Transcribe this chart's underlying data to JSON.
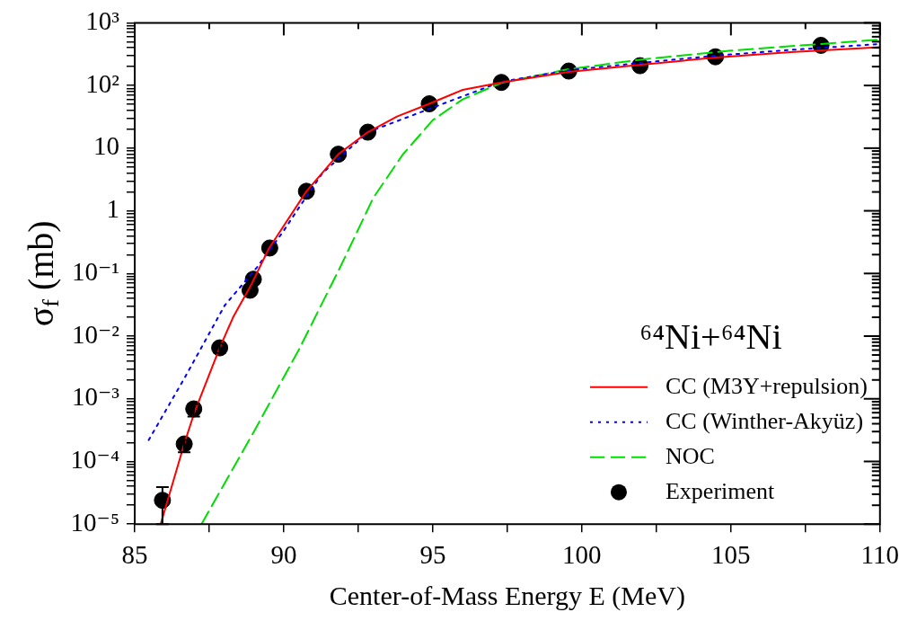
{
  "chart_data": {
    "type": "line",
    "xlabel": "Center-of-Mass Energy E (MeV)",
    "ylabel": "σ$_{f}$ (mb)",
    "legend_title": "⁶⁴Ni+⁶⁴Ni",
    "legend": "bottom right",
    "log": "y",
    "grid": false,
    "xlim": [
      85,
      110
    ],
    "ylim": [
      1e-05,
      1000
    ],
    "xticks": [
      85,
      {
        "value": 87.5,
        "label": null
      },
      90,
      {
        "value": 92.5,
        "label": null
      },
      95,
      {
        "value": 97.5,
        "label": null
      },
      100,
      {
        "value": 102.5,
        "label": null
      },
      105,
      {
        "value": 107.5,
        "label": null
      },
      110
    ],
    "yticks": [
      {
        "value": 1e-05,
        "label": "10⁻⁵"
      },
      {
        "value": 2e-05,
        "label": null
      },
      {
        "value": 3e-05,
        "label": null
      },
      {
        "value": 4e-05,
        "label": null
      },
      {
        "value": 5e-05,
        "label": null
      },
      {
        "value": 6e-05,
        "label": null
      },
      {
        "value": 7e-05,
        "label": null
      },
      {
        "value": 8e-05,
        "label": null
      },
      {
        "value": 9e-05,
        "label": null
      },
      {
        "value": 0.0001,
        "label": "10⁻⁴"
      },
      {
        "value": 0.0002,
        "label": null
      },
      {
        "value": 0.0003,
        "label": null
      },
      {
        "value": 0.0004,
        "label": null
      },
      {
        "value": 0.0005,
        "label": null
      },
      {
        "value": 0.0006,
        "label": null
      },
      {
        "value": 0.0007,
        "label": null
      },
      {
        "value": 0.0008,
        "label": null
      },
      {
        "value": 0.0009,
        "label": null
      },
      {
        "value": 0.001,
        "label": "10⁻³"
      },
      {
        "value": 0.002,
        "label": null
      },
      {
        "value": 0.003,
        "label": null
      },
      {
        "value": 0.004,
        "label": null
      },
      {
        "value": 0.005,
        "label": null
      },
      {
        "value": 0.006,
        "label": null
      },
      {
        "value": 0.007,
        "label": null
      },
      {
        "value": 0.008,
        "label": null
      },
      {
        "value": 0.009,
        "label": null
      },
      {
        "value": 0.01,
        "label": "10⁻²"
      },
      {
        "value": 0.02,
        "label": null
      },
      {
        "value": 0.03,
        "label": null
      },
      {
        "value": 0.04,
        "label": null
      },
      {
        "value": 0.05,
        "label": null
      },
      {
        "value": 0.06,
        "label": null
      },
      {
        "value": 0.07,
        "label": null
      },
      {
        "value": 0.08,
        "label": null
      },
      {
        "value": 0.09,
        "label": null
      },
      {
        "value": 0.1,
        "label": "10⁻¹"
      },
      {
        "value": 0.2,
        "label": null
      },
      {
        "value": 0.3,
        "label": null
      },
      {
        "value": 0.4,
        "label": null
      },
      {
        "value": 0.5,
        "label": null
      },
      {
        "value": 0.6,
        "label": null
      },
      {
        "value": 0.7,
        "label": null
      },
      {
        "value": 0.8,
        "label": null
      },
      {
        "value": 0.9,
        "label": null
      },
      1,
      {
        "value": 2,
        "label": null
      },
      {
        "value": 3,
        "label": null
      },
      {
        "value": 4,
        "label": null
      },
      {
        "value": 5,
        "label": null
      },
      {
        "value": 6,
        "label": null
      },
      {
        "value": 7,
        "label": null
      },
      {
        "value": 8,
        "label": null
      },
      {
        "value": 9,
        "label": null
      },
      10,
      {
        "value": 20,
        "label": null
      },
      {
        "value": 30,
        "label": null
      },
      {
        "value": 40,
        "label": null
      },
      {
        "value": 50,
        "label": null
      },
      {
        "value": 60,
        "label": null
      },
      {
        "value": 70,
        "label": null
      },
      {
        "value": 80,
        "label": null
      },
      {
        "value": 90,
        "label": null
      },
      {
        "value": 100,
        "label": "10²"
      },
      {
        "value": 200,
        "label": null
      },
      {
        "value": 300,
        "label": null
      },
      {
        "value": 400,
        "label": null
      },
      {
        "value": 500,
        "label": null
      },
      {
        "value": 600,
        "label": null
      },
      {
        "value": 700,
        "label": null
      },
      {
        "value": 800,
        "label": null
      },
      {
        "value": 900,
        "label": null
      },
      {
        "value": 1000,
        "label": "10³"
      }
    ],
    "series": [
      {
        "name": "CC (M3Y+repulsion)",
        "color": "#ff0000",
        "line_style": "solid",
        "marker": "none",
        "x": [
          85.87,
          86.66,
          87.0,
          87.85,
          88.3,
          88.9,
          89.5,
          90.76,
          91.83,
          92.82,
          93.8,
          94.88,
          96.0,
          97.3,
          99.56,
          102.0,
          104.5,
          107.0,
          110.0
        ],
        "values": [
          1e-05,
          0.00019,
          0.0006,
          0.0065,
          0.02,
          0.065,
          0.25,
          2.05,
          8,
          18,
          32,
          51,
          85,
          112,
          165,
          215,
          280,
          340,
          410
        ]
      },
      {
        "name": "CC (Winther-Akyüz)",
        "color": "#0000ff",
        "line_style": "dotted",
        "marker": "none",
        "x": [
          85.47,
          85.87,
          86.66,
          87.24,
          88.02,
          89.1,
          89.97,
          90.55,
          91.3,
          92.82,
          97.3,
          99.56,
          102.0,
          104.5,
          107.0,
          110.0
        ],
        "values": [
          0.00022,
          0.00047,
          0.0021,
          0.0066,
          0.031,
          0.125,
          0.46,
          1.2,
          4.0,
          18,
          115,
          175,
          230,
          300,
          370,
          460
        ]
      },
      {
        "name": "NOC",
        "color": "#00dd00",
        "line_style": "dashed",
        "marker": "none",
        "x": [
          87.24,
          89.0,
          90.5,
          91.89,
          93.0,
          94.0,
          95.0,
          96.0,
          97.3,
          99.5,
          102.0,
          105.0,
          110.0
        ],
        "values": [
          1e-05,
          0.0003,
          0.006,
          0.125,
          1.6,
          8,
          28,
          60,
          110,
          180,
          260,
          360,
          540
        ]
      },
      {
        "name": "Experiment",
        "type": "scatter",
        "color": "#000000",
        "marker": "circle",
        "x": [
          85.93,
          86.66,
          86.98,
          87.85,
          88.87,
          88.98,
          89.53,
          90.76,
          91.83,
          92.82,
          94.88,
          97.3,
          99.56,
          101.95,
          104.48,
          108.02
        ],
        "values": [
          2.4e-05,
          0.00019,
          0.00069,
          0.0065,
          0.054,
          0.081,
          0.255,
          2.05,
          8.0,
          18,
          51,
          112,
          170,
          207,
          287,
          437
        ],
        "errors": [
          [
            1e-05,
            3.9e-05
          ],
          [
            0.00014,
            0.00022
          ],
          [
            0.00052,
            0.00083
          ],
          [
            0.0054,
            0.0076
          ],
          null,
          null,
          null,
          null,
          null,
          null,
          null,
          null,
          null,
          null,
          null,
          null
        ]
      }
    ]
  }
}
